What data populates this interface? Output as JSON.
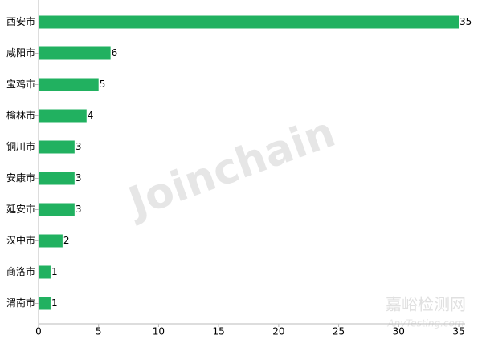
{
  "chart_data": {
    "type": "hbar",
    "categories": [
      "西安市",
      "咸阳市",
      "宝鸡市",
      "榆林市",
      "铜川市",
      "安康市",
      "延安市",
      "汉中市",
      "商洛市",
      "渭南市"
    ],
    "values": [
      35,
      6,
      5,
      4,
      3,
      3,
      3,
      2,
      1,
      1
    ],
    "color": "#21b160",
    "xlim": [
      0,
      35
    ],
    "xticks": [
      0,
      5,
      10,
      15,
      20,
      25,
      30,
      35
    ],
    "watermarks": [
      "Joinchain",
      "嘉峪检测网",
      "AnyTesting.com"
    ]
  }
}
